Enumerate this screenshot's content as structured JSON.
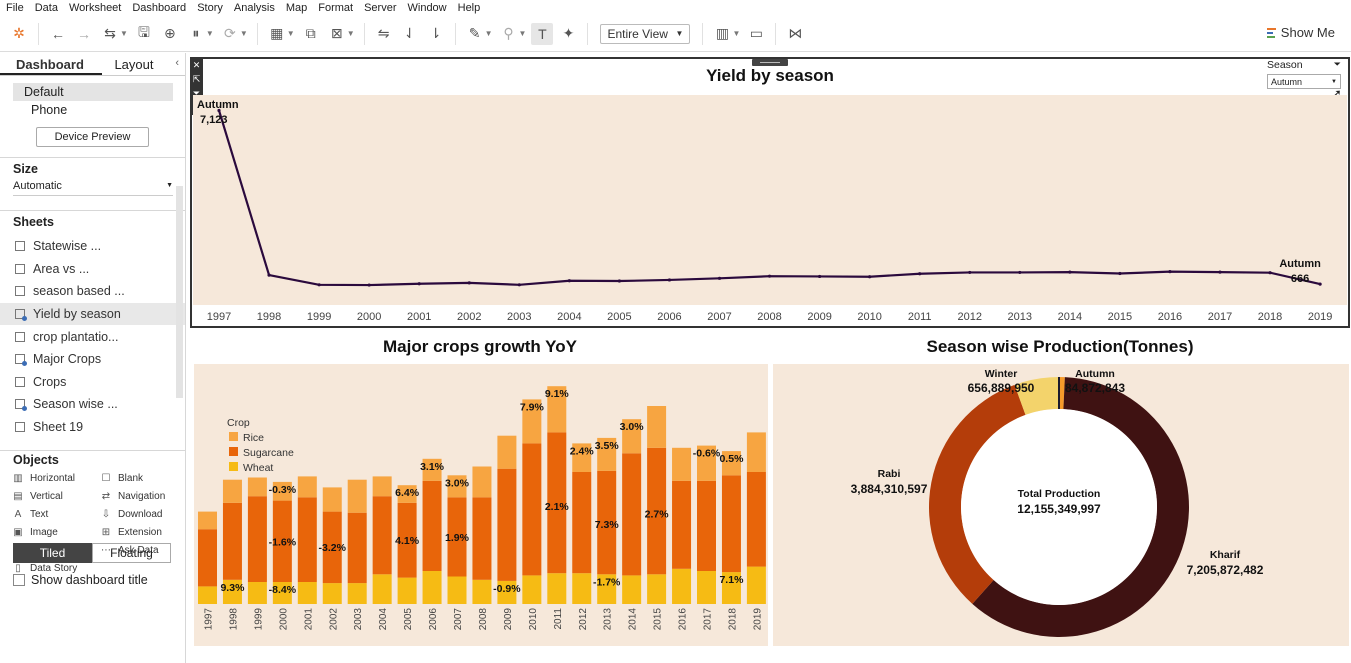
{
  "menu": [
    "File",
    "Data",
    "Worksheet",
    "Dashboard",
    "Story",
    "Analysis",
    "Map",
    "Format",
    "Server",
    "Window",
    "Help"
  ],
  "toolbar": {
    "fit": "Entire View",
    "show_me": "Show Me"
  },
  "left": {
    "tab_dashboard": "Dashboard",
    "tab_layout": "Layout",
    "device_default": "Default",
    "device_phone": "Phone",
    "device_preview": "Device Preview",
    "size_header": "Size",
    "size_value": "Automatic",
    "sheets_header": "Sheets",
    "sheets": [
      {
        "label": "Statewise ...",
        "type": "sheet"
      },
      {
        "label": "Area vs ...",
        "type": "sheet"
      },
      {
        "label": "season based ...",
        "type": "sheet"
      },
      {
        "label": "Yield by season",
        "type": "dash"
      },
      {
        "label": "crop plantatio...",
        "type": "sheet"
      },
      {
        "label": "Major Crops",
        "type": "dash"
      },
      {
        "label": "Crops",
        "type": "sheet"
      },
      {
        "label": "Season wise ...",
        "type": "dash"
      },
      {
        "label": "Sheet 19",
        "type": "sheet"
      }
    ],
    "objects_header": "Objects",
    "objects": [
      {
        "label": "Horizontal",
        "icon": "▥"
      },
      {
        "label": "Blank",
        "icon": "☐"
      },
      {
        "label": "Vertical",
        "icon": "▤"
      },
      {
        "label": "Navigation",
        "icon": "⇄"
      },
      {
        "label": "Text",
        "icon": "A"
      },
      {
        "label": "Download",
        "icon": "⇩"
      },
      {
        "label": "Image",
        "icon": "▣"
      },
      {
        "label": "Extension",
        "icon": "⊞"
      },
      {
        "label": "Web Page",
        "icon": "⊕"
      },
      {
        "label": "Ask Data",
        "icon": "⋯"
      },
      {
        "label": "Data Story",
        "icon": "▯"
      }
    ],
    "tiled": "Tiled",
    "floating": "Floating",
    "show_title": "Show dashboard title"
  },
  "filter": {
    "label": "Season",
    "value": "Autumn"
  },
  "colors": {
    "line": "#2b0a3d",
    "bg_panel": "#f6e8da",
    "rice": "#f7a541",
    "sugarcane": "#e8650a",
    "wheat": "#f6bb14",
    "kharif": "#3f1212",
    "rabi": "#b43d0a",
    "winter": "#f3d36b",
    "autumn": "#f59a2a"
  },
  "chart_data": [
    {
      "type": "line",
      "title": "Yield by season",
      "x": [
        "1997",
        "1998",
        "1999",
        "2000",
        "2001",
        "2002",
        "2003",
        "2004",
        "2005",
        "2006",
        "2007",
        "2008",
        "2009",
        "2010",
        "2011",
        "2012",
        "2013",
        "2014",
        "2015",
        "2016",
        "2017",
        "2018",
        "2019"
      ],
      "series": [
        {
          "name": "Autumn",
          "values": [
            7123,
            1000,
            640,
            630,
            680,
            710,
            640,
            790,
            780,
            820,
            880,
            960,
            950,
            940,
            1050,
            1100,
            1100,
            1110,
            1060,
            1130,
            1110,
            1090,
            666
          ]
        }
      ],
      "annotations": [
        {
          "text": "Autumn",
          "value_text": "7,123",
          "x": "1997"
        },
        {
          "text": "Autumn",
          "value_text": "666",
          "x": "2019"
        }
      ],
      "ylim": [
        0,
        7400
      ]
    },
    {
      "type": "bar",
      "title": "Major crops growth YoY",
      "legend_title": "Crop",
      "legend": [
        "Rice",
        "Sugarcane",
        "Wheat"
      ],
      "categories": [
        "1997",
        "1998",
        "1999",
        "2000",
        "2001",
        "2002",
        "2003",
        "2004",
        "2005",
        "2006",
        "2007",
        "2008",
        "2009",
        "2010",
        "2011",
        "2012",
        "2013",
        "2014",
        "2015",
        "2016",
        "2017",
        "2018",
        "2019"
      ],
      "series": [
        {
          "name": "Wheat",
          "values": [
            16,
            22,
            20,
            20,
            20,
            19,
            19,
            27,
            24,
            30,
            25,
            22,
            21,
            26,
            28,
            28,
            27,
            26,
            27,
            32,
            30,
            29,
            34
          ]
        },
        {
          "name": "Sugarcane",
          "values": [
            52,
            70,
            78,
            74,
            77,
            65,
            64,
            71,
            68,
            82,
            72,
            75,
            102,
            120,
            128,
            92,
            94,
            111,
            115,
            80,
            82,
            88,
            86
          ]
        },
        {
          "name": "Rice",
          "values": [
            16,
            21,
            17,
            17,
            19,
            22,
            30,
            18,
            16,
            20,
            20,
            28,
            30,
            40,
            42,
            26,
            30,
            31,
            38,
            30,
            32,
            22,
            36
          ]
        }
      ],
      "labels": [
        {
          "cat": "1998",
          "text": "9.3%",
          "pos": "wheat"
        },
        {
          "cat": "2000",
          "text": "-0.3%",
          "pos": "top"
        },
        {
          "cat": "2000",
          "text": "-1.6%",
          "pos": "sugar"
        },
        {
          "cat": "2000",
          "text": "-8.4%",
          "pos": "wheat"
        },
        {
          "cat": "2002",
          "text": "-3.2%",
          "pos": "sugar"
        },
        {
          "cat": "2005",
          "text": "6.4%",
          "pos": "top"
        },
        {
          "cat": "2005",
          "text": "4.1%",
          "pos": "sugar"
        },
        {
          "cat": "2006",
          "text": "3.1%",
          "pos": "top"
        },
        {
          "cat": "2007",
          "text": "3.0%",
          "pos": "top"
        },
        {
          "cat": "2007",
          "text": "1.9%",
          "pos": "sugar"
        },
        {
          "cat": "2009",
          "text": "-0.9%",
          "pos": "wheat"
        },
        {
          "cat": "2010",
          "text": "7.9%",
          "pos": "top"
        },
        {
          "cat": "2011",
          "text": "9.1%",
          "pos": "top"
        },
        {
          "cat": "2011",
          "text": "2.1%",
          "pos": "sugar"
        },
        {
          "cat": "2012",
          "text": "2.4%",
          "pos": "top"
        },
        {
          "cat": "2013",
          "text": "3.5%",
          "pos": "top"
        },
        {
          "cat": "2013",
          "text": "7.3%",
          "pos": "sugar"
        },
        {
          "cat": "2013",
          "text": "-1.7%",
          "pos": "wheat"
        },
        {
          "cat": "2014",
          "text": "3.0%",
          "pos": "top"
        },
        {
          "cat": "2015",
          "text": "2.7%",
          "pos": "sugar"
        },
        {
          "cat": "2017",
          "text": "-0.6%",
          "pos": "top"
        },
        {
          "cat": "2018",
          "text": "0.5%",
          "pos": "top"
        },
        {
          "cat": "2018",
          "text": "7.1%",
          "pos": "wheat"
        }
      ]
    },
    {
      "type": "pie",
      "title": "Season wise Production(Tonnes)",
      "center_label": "Total Production",
      "center_value": "12,155,349,997",
      "slices": [
        {
          "name": "Autumn",
          "value": 84872843,
          "value_text": "84,872,843"
        },
        {
          "name": "Kharif",
          "value": 7205872482,
          "value_text": "7,205,872,482"
        },
        {
          "name": "Rabi",
          "value": 3884310597,
          "value_text": "3,884,310,597"
        },
        {
          "name": "Winter",
          "value": 656889950,
          "value_text": "656,889,950"
        }
      ]
    }
  ]
}
